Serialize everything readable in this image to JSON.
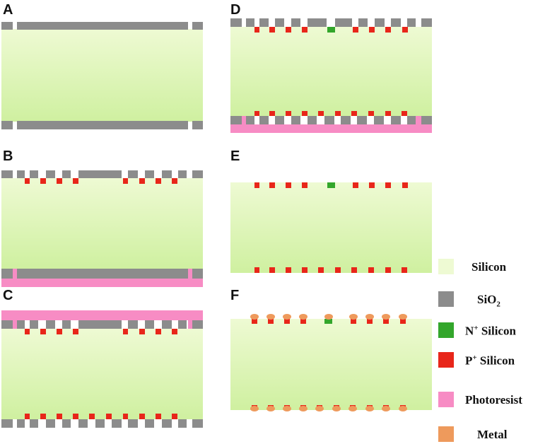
{
  "panels": [
    {
      "id": "A",
      "label": "A"
    },
    {
      "id": "B",
      "label": "B"
    },
    {
      "id": "C",
      "label": "C"
    },
    {
      "id": "D",
      "label": "D"
    },
    {
      "id": "E",
      "label": "E"
    },
    {
      "id": "F",
      "label": "F"
    }
  ],
  "legend": [
    {
      "key": "silicon",
      "label": "Silicon",
      "color": "#eefad3"
    },
    {
      "key": "sio2",
      "label_main": "SiO",
      "label_sub": "2",
      "color": "#8c8c8c"
    },
    {
      "key": "n_silicon",
      "label_sup": "+",
      "label_pre": "N",
      "label_post": " Silicon",
      "color": "#33a62b"
    },
    {
      "key": "p_silicon",
      "label_sup": "+",
      "label_pre": "P",
      "label_post": " Silicon",
      "color": "#e8261a"
    },
    {
      "key": "photoresist",
      "label": "Photoresist",
      "color": "#f78cc4"
    },
    {
      "key": "metal",
      "label": "Metal",
      "color": "#ee9a5c"
    }
  ],
  "colors": {
    "silicon_top": "#eefad3",
    "silicon_bottom": "#cff0a0",
    "sio2": "#8c8c8c",
    "n_plus": "#33a62b",
    "p_plus": "#e8261a",
    "photoresist": "#f78cc4",
    "metal": "#ee9a5c"
  }
}
